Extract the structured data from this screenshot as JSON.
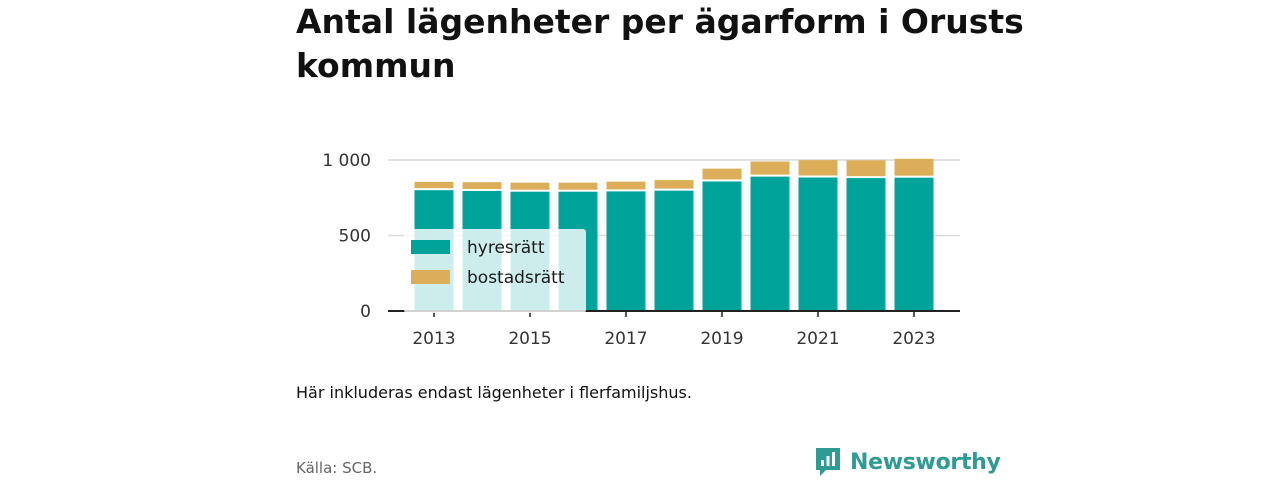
{
  "title": "Antal lägenheter per ägarform i Orusts kommun",
  "note": "Här inkluderas endast lägenheter i flerfamiljshus.",
  "source": "Källa: SCB.",
  "brand": "Newsworthy",
  "colors": {
    "hyresratt": "#00a39a",
    "bostadsratt": "#dcae5a",
    "brand": "#2f9c93"
  },
  "chart_data": {
    "type": "bar",
    "stacked": true,
    "categories": [
      "2013",
      "2014",
      "2015",
      "2016",
      "2017",
      "2018",
      "2019",
      "2020",
      "2021",
      "2022",
      "2023"
    ],
    "x_tick_labels": [
      "2013",
      "2015",
      "2017",
      "2019",
      "2021",
      "2023"
    ],
    "series": [
      {
        "name": "hyresrätt",
        "color": "#00a39a",
        "values": [
          800,
          795,
          790,
          790,
          792,
          797,
          858,
          890,
          884,
          880,
          883
        ]
      },
      {
        "name": "bostadsrätt",
        "color": "#dcae5a",
        "values": [
          55,
          58,
          60,
          60,
          65,
          70,
          85,
          100,
          115,
          118,
          125
        ]
      }
    ],
    "ylim": [
      0,
      1000
    ],
    "y_ticks": [
      0,
      500,
      1000
    ],
    "y_tick_labels": [
      "0",
      "500",
      "1 000"
    ],
    "grid": true,
    "legend_position": "left-inside"
  }
}
